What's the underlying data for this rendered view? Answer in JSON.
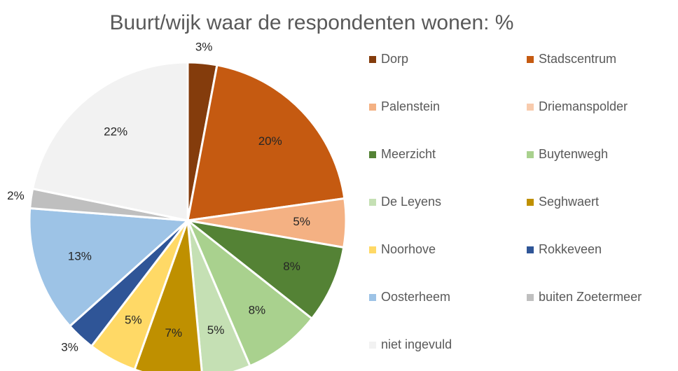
{
  "chart_data": {
    "type": "pie",
    "title": "Buurt/wijk waar de respondenten wonen: %",
    "categories": [
      "Dorp",
      "Stadscentrum",
      "Palenstein",
      "Driemanspolder",
      "Meerzicht",
      "Buytenwegh",
      "De Leyens",
      "Seghwaert",
      "Noorhove",
      "Rokkeveen",
      "Oosterheem",
      "buiten Zoetermeer",
      "niet ingevuld"
    ],
    "values": [
      3,
      20,
      5,
      0,
      8,
      8,
      5,
      7,
      5,
      3,
      13,
      2,
      22
    ],
    "value_labels": [
      "3%",
      "20%",
      "5%",
      null,
      "8%",
      "8%",
      "5%",
      "7%",
      "5%",
      "3%",
      "13%",
      "2%",
      "22%"
    ],
    "colors": [
      "#843c0c",
      "#c55a11",
      "#f4b183",
      "#f8cbad",
      "#548235",
      "#a9d18e",
      "#c5e0b4",
      "#bf9000",
      "#ffd966",
      "#2f5597",
      "#9dc3e6",
      "#bfbfbf",
      "#f2f2f2"
    ],
    "legend": "right"
  }
}
